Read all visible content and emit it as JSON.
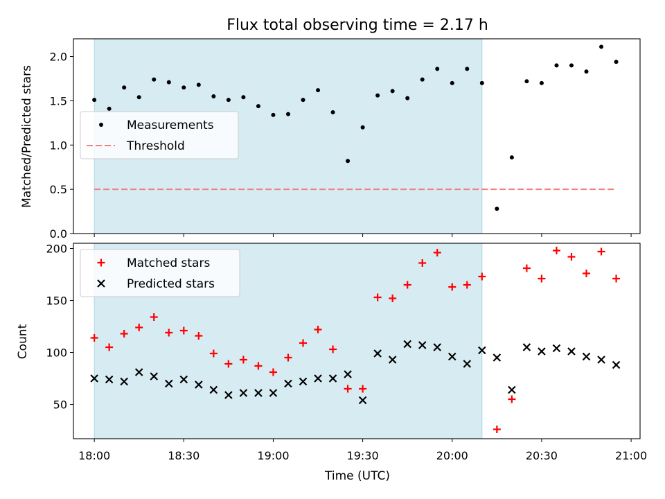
{
  "chart_data": [
    {
      "type": "scatter",
      "title": "Flux total observing time = 2.17 h",
      "ylabel": "Matched/Predicted stars",
      "xlabel": "",
      "xlim": [
        "17:53",
        "21:03"
      ],
      "ylim": [
        0,
        2.2
      ],
      "yticks": [
        "0.0",
        "0.5",
        "1.0",
        "1.5",
        "2.0"
      ],
      "shaded_interval": [
        "18:00",
        "20:10"
      ],
      "shade_color": "#add8e6",
      "legend_position": "center-left",
      "series": [
        {
          "name": "Measurements",
          "marker": "dot",
          "color": "#000000",
          "x": [
            "18:00",
            "18:05",
            "18:10",
            "18:15",
            "18:20",
            "18:25",
            "18:30",
            "18:35",
            "18:40",
            "18:45",
            "18:50",
            "18:55",
            "19:00",
            "19:05",
            "19:10",
            "19:15",
            "19:20",
            "19:25",
            "19:30",
            "19:35",
            "19:40",
            "19:45",
            "19:50",
            "19:55",
            "20:00",
            "20:05",
            "20:10",
            "20:15",
            "20:20",
            "20:25",
            "20:30",
            "20:35",
            "20:40",
            "20:45",
            "20:50",
            "20:55"
          ],
          "y": [
            1.51,
            1.41,
            1.65,
            1.54,
            1.74,
            1.71,
            1.65,
            1.68,
            1.55,
            1.51,
            1.54,
            1.44,
            1.34,
            1.35,
            1.51,
            1.62,
            1.37,
            0.82,
            1.2,
            1.56,
            1.61,
            1.53,
            1.74,
            1.86,
            1.7,
            1.86,
            1.7,
            0.28,
            0.86,
            1.72,
            1.7,
            1.9,
            1.9,
            1.83,
            2.11,
            1.94
          ]
        },
        {
          "name": "Threshold",
          "style": "dashed",
          "color": "#f08080",
          "x": [
            "18:00",
            "20:55"
          ],
          "y": [
            0.5,
            0.5
          ]
        }
      ]
    },
    {
      "type": "scatter",
      "title": "",
      "ylabel": "Count",
      "xlabel": "Time (UTC)",
      "xlim": [
        "17:53",
        "21:03"
      ],
      "ylim": [
        17,
        205
      ],
      "yticks": [
        "50",
        "100",
        "150",
        "200"
      ],
      "xticks": [
        "18:00",
        "18:30",
        "19:00",
        "19:30",
        "20:00",
        "20:30",
        "21:00"
      ],
      "shaded_interval": [
        "18:00",
        "20:10"
      ],
      "shade_color": "#add8e6",
      "legend_position": "top-left",
      "series": [
        {
          "name": "Matched stars",
          "marker": "plus",
          "color": "#ff0000",
          "x": [
            "18:00",
            "18:05",
            "18:10",
            "18:15",
            "18:20",
            "18:25",
            "18:30",
            "18:35",
            "18:40",
            "18:45",
            "18:50",
            "18:55",
            "19:00",
            "19:05",
            "19:10",
            "19:15",
            "19:20",
            "19:25",
            "19:30",
            "19:35",
            "19:40",
            "19:45",
            "19:50",
            "19:55",
            "20:00",
            "20:05",
            "20:10",
            "20:15",
            "20:20",
            "20:25",
            "20:30",
            "20:35",
            "20:40",
            "20:45",
            "20:50",
            "20:55"
          ],
          "y": [
            114,
            105,
            118,
            124,
            134,
            119,
            121,
            116,
            99,
            89,
            93,
            87,
            81,
            95,
            109,
            122,
            103,
            65,
            65,
            153,
            152,
            165,
            186,
            196,
            163,
            165,
            173,
            26,
            55,
            181,
            171,
            198,
            192,
            176,
            197,
            171
          ]
        },
        {
          "name": "Predicted stars",
          "marker": "x",
          "color": "#000000",
          "x": [
            "18:00",
            "18:05",
            "18:10",
            "18:15",
            "18:20",
            "18:25",
            "18:30",
            "18:35",
            "18:40",
            "18:45",
            "18:50",
            "18:55",
            "19:00",
            "19:05",
            "19:10",
            "19:15",
            "19:20",
            "19:25",
            "19:30",
            "19:35",
            "19:40",
            "19:45",
            "19:50",
            "19:55",
            "20:00",
            "20:05",
            "20:10",
            "20:15",
            "20:20",
            "20:25",
            "20:30",
            "20:35",
            "20:40",
            "20:45",
            "20:50",
            "20:55"
          ],
          "y": [
            75,
            74,
            72,
            81,
            77,
            70,
            74,
            69,
            64,
            59,
            61,
            61,
            61,
            70,
            72,
            75,
            75,
            79,
            54,
            99,
            93,
            108,
            107,
            105,
            96,
            89,
            102,
            95,
            64,
            105,
            101,
            104,
            101,
            96,
            93,
            88
          ]
        }
      ]
    }
  ]
}
